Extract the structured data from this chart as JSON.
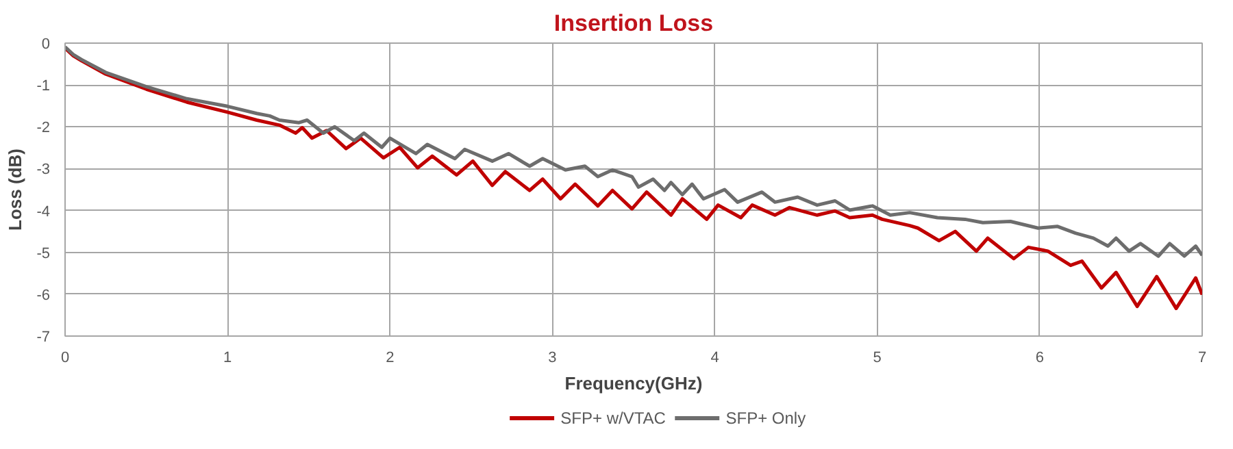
{
  "chart_data": {
    "type": "line",
    "title": "Insertion Loss",
    "xlabel": "Frequency(GHz)",
    "ylabel": "Loss (dB)",
    "xlim": [
      0,
      7
    ],
    "xticks": [
      0,
      1,
      2,
      3,
      4,
      5,
      6,
      7
    ],
    "ylim": [
      -7,
      0
    ],
    "yticks": [
      0,
      -1,
      -2,
      -3,
      -4,
      -5,
      -6,
      -7
    ],
    "grid": true,
    "legend": "bottom",
    "marker": "none",
    "line_style": "solid",
    "series": [
      {
        "name": "SFP+ w/VTAC",
        "color": "#c00000",
        "x": [
          0,
          0.05,
          0.1,
          0.25,
          0.5,
          0.75,
          1.0,
          1.18,
          1.32,
          1.42,
          1.46,
          1.52,
          1.61,
          1.73,
          1.82,
          1.96,
          2.06,
          2.17,
          2.26,
          2.41,
          2.51,
          2.63,
          2.71,
          2.86,
          2.94,
          3.05,
          3.14,
          3.28,
          3.37,
          3.49,
          3.58,
          3.73,
          3.8,
          3.95,
          4.02,
          4.16,
          4.23,
          4.37,
          4.46,
          4.63,
          4.74,
          4.83,
          4.97,
          5.03,
          5.2,
          5.25,
          5.38,
          5.48,
          5.61,
          5.68,
          5.84,
          5.93,
          6.05,
          6.19,
          6.26,
          6.38,
          6.47,
          6.6,
          6.72,
          6.84,
          6.96,
          7.0
        ],
        "values": [
          -0.12,
          -0.3,
          -0.42,
          -0.74,
          -1.1,
          -1.41,
          -1.65,
          -1.84,
          -1.96,
          -2.15,
          -2.02,
          -2.27,
          -2.09,
          -2.52,
          -2.27,
          -2.74,
          -2.49,
          -2.98,
          -2.7,
          -3.15,
          -2.82,
          -3.4,
          -3.07,
          -3.52,
          -3.25,
          -3.72,
          -3.37,
          -3.89,
          -3.52,
          -3.96,
          -3.56,
          -4.11,
          -3.72,
          -4.21,
          -3.87,
          -4.17,
          -3.87,
          -4.11,
          -3.93,
          -4.11,
          -4.01,
          -4.17,
          -4.11,
          -4.21,
          -4.36,
          -4.42,
          -4.72,
          -4.5,
          -4.97,
          -4.66,
          -5.15,
          -4.88,
          -4.97,
          -5.31,
          -5.21,
          -5.85,
          -5.48,
          -6.29,
          -5.58,
          -6.34,
          -5.61,
          -6.01
        ]
      },
      {
        "name": "SFP+ Only",
        "color": "#6d6d6d",
        "x": [
          0,
          0.05,
          0.1,
          0.25,
          0.5,
          0.75,
          1.0,
          1.18,
          1.26,
          1.32,
          1.44,
          1.49,
          1.59,
          1.66,
          1.78,
          1.84,
          1.95,
          2.0,
          2.16,
          2.23,
          2.4,
          2.46,
          2.63,
          2.73,
          2.86,
          2.94,
          3.08,
          3.2,
          3.28,
          3.37,
          3.49,
          3.53,
          3.62,
          3.69,
          3.73,
          3.8,
          3.86,
          3.93,
          4.06,
          4.14,
          4.29,
          4.37,
          4.51,
          4.63,
          4.74,
          4.83,
          4.97,
          5.08,
          5.2,
          5.37,
          5.54,
          5.65,
          5.82,
          5.99,
          6.11,
          6.22,
          6.33,
          6.42,
          6.47,
          6.55,
          6.62,
          6.73,
          6.8,
          6.89,
          6.96,
          7.0
        ],
        "values": [
          -0.09,
          -0.27,
          -0.39,
          -0.7,
          -1.04,
          -1.33,
          -1.51,
          -1.68,
          -1.74,
          -1.84,
          -1.9,
          -1.84,
          -2.15,
          -2.0,
          -2.33,
          -2.15,
          -2.49,
          -2.27,
          -2.64,
          -2.42,
          -2.76,
          -2.54,
          -2.82,
          -2.64,
          -2.94,
          -2.76,
          -3.03,
          -2.94,
          -3.19,
          -3.03,
          -3.19,
          -3.44,
          -3.25,
          -3.52,
          -3.33,
          -3.62,
          -3.37,
          -3.72,
          -3.5,
          -3.8,
          -3.56,
          -3.8,
          -3.68,
          -3.87,
          -3.77,
          -3.99,
          -3.89,
          -4.11,
          -4.05,
          -4.17,
          -4.21,
          -4.29,
          -4.26,
          -4.42,
          -4.38,
          -4.54,
          -4.66,
          -4.85,
          -4.66,
          -4.97,
          -4.79,
          -5.09,
          -4.79,
          -5.09,
          -4.85,
          -5.07
        ]
      }
    ]
  }
}
